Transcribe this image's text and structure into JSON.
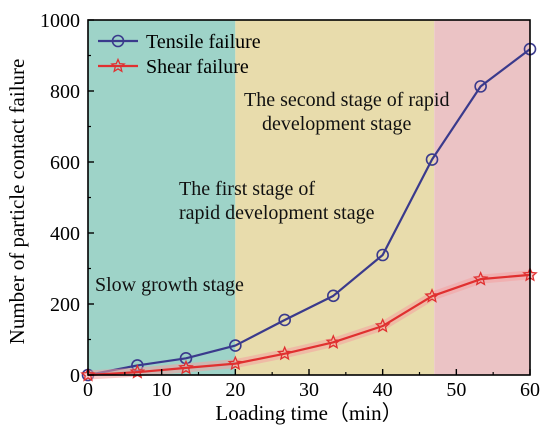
{
  "chart_data": {
    "type": "line",
    "title": "",
    "xlabel": "Loading time（min）",
    "ylabel": "Number of particle contact failure",
    "xlim": [
      0,
      60
    ],
    "ylim": [
      0,
      1000
    ],
    "xticks": [
      0,
      10,
      20,
      30,
      40,
      50,
      60
    ],
    "yticks": [
      0,
      200,
      400,
      600,
      800,
      1000
    ],
    "grid": false,
    "legend_position": "top-left",
    "x": [
      0,
      6.7,
      13.3,
      20,
      26.7,
      33.3,
      40,
      46.7,
      53.3,
      60
    ],
    "series": [
      {
        "name": "Tensile failure",
        "marker": "circle",
        "color": "#3a3a8c",
        "values": [
          0,
          27,
          47,
          83,
          155,
          223,
          338,
          607,
          813,
          918
        ]
      },
      {
        "name": "Shear failure",
        "marker": "star",
        "color": "#e03030",
        "values": [
          0,
          8,
          20,
          32,
          60,
          92,
          138,
          222,
          270,
          282
        ]
      }
    ],
    "stages": [
      {
        "label": "Slow growth stage",
        "x_range": [
          0,
          20
        ],
        "color": "#9ed3c8"
      },
      {
        "label": "The first stage of\nrapid development stage",
        "x_range": [
          20,
          47
        ],
        "color": "#e8dcac"
      },
      {
        "label": "The second stage of rapid\ndevelopment stage",
        "x_range": [
          20,
          47
        ],
        "color": "#e8dcac"
      },
      {
        "label": "",
        "x_range": [
          47,
          60
        ],
        "color": "#ebc3c5"
      }
    ]
  }
}
